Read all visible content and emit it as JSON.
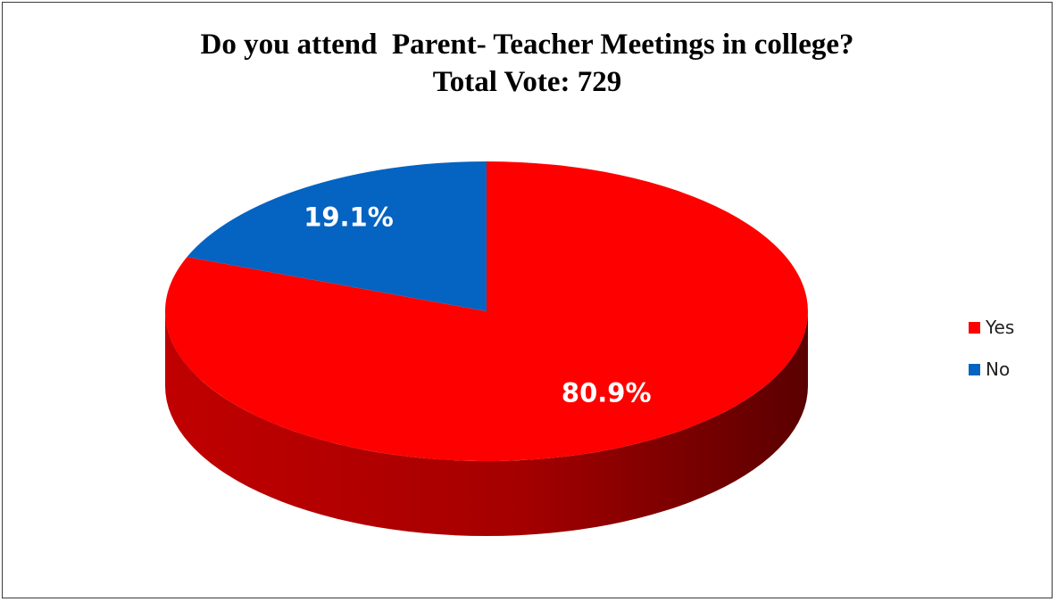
{
  "chart_data": {
    "type": "pie",
    "title_line1": "Do you attend  Parent- Teacher Meetings in college?",
    "title_line2": "Total Vote: 729",
    "categories": [
      "Yes",
      "No"
    ],
    "values": [
      80.9,
      19.1
    ],
    "labels": [
      "80.9%",
      "19.1%"
    ],
    "colors": [
      "#ff0000",
      "#0563c1"
    ],
    "legend_position": "right",
    "style": "3d"
  }
}
